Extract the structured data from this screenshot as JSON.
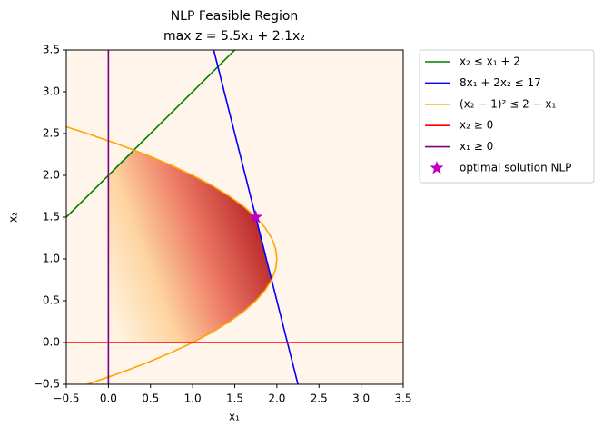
{
  "chart_data": {
    "type": "line",
    "title": "NLP Feasible Region",
    "subtitle": "max z = 5.5x₁ + 2.1x₂",
    "x_label": "x₁",
    "y_label": "x₂",
    "xlim": [
      -0.5,
      3.5
    ],
    "ylim": [
      -0.5,
      3.5
    ],
    "xticks": [
      {
        "value": -0.5,
        "label": "−0.5"
      },
      {
        "value": 0,
        "label": "0.0"
      },
      0.5,
      {
        "value": 1,
        "label": "1.0"
      },
      1.5,
      {
        "value": 2,
        "label": "2.0"
      },
      2.5,
      {
        "value": 3,
        "label": "3.0"
      },
      3.5
    ],
    "yticks": [
      {
        "value": -0.5,
        "label": "−0.5"
      },
      {
        "value": 0,
        "label": "0.0"
      },
      0.5,
      {
        "value": 1,
        "label": "1.0"
      },
      1.5,
      {
        "value": 2,
        "label": "2.0"
      },
      2.5,
      {
        "value": 3,
        "label": "3.0"
      },
      3.5
    ],
    "legend": "outside upper right",
    "series": [
      {
        "name": "x₂ ≤ x₁ + 2",
        "color": "#008000",
        "x": [
          -0.5,
          1.5
        ],
        "values": [
          1.5,
          3.5
        ]
      },
      {
        "name": "8x₁ + 2x₂ ≤ 17",
        "color": "#0000ff",
        "x": [
          1.25,
          2.25
        ],
        "values": [
          3.5,
          -0.5
        ]
      },
      {
        "name": "(x₂ − 1)² ≤ 2 − x₁",
        "color": "#ffa500",
        "x": [
          -0.25,
          0.109375,
          0.4375,
          0.734375,
          1,
          1.234375,
          1.4375,
          1.609375,
          1.75,
          1.859375,
          1.9375,
          1.984375,
          2,
          1.984375,
          1.9375,
          1.859375,
          1.75,
          1.609375,
          1.4375,
          1.234375,
          1,
          0.734375,
          0.4375,
          0.109375,
          -0.25,
          -0.4964
        ],
        "values": [
          -0.5,
          -0.375,
          -0.25,
          -0.125,
          0,
          0.125,
          0.25,
          0.375,
          0.5,
          0.625,
          0.75,
          0.875,
          1,
          1.125,
          1.25,
          1.375,
          1.5,
          1.625,
          1.75,
          1.875,
          2,
          2.125,
          2.25,
          2.375,
          2.5,
          2.58
        ]
      },
      {
        "name": "x₂ ≥ 0",
        "color": "#ff0000",
        "x": [
          -0.5,
          3.5
        ],
        "values": [
          0,
          0
        ]
      },
      {
        "name": "x₁ ≥ 0",
        "color": "#800080",
        "x": [
          0,
          0
        ],
        "values": [
          -0.5,
          3.5
        ]
      },
      {
        "name": "optimal solution NLP",
        "color": "#c000c0",
        "marker": "star",
        "x": [
          1.75
        ],
        "values": [
          1.5
        ]
      }
    ]
  }
}
